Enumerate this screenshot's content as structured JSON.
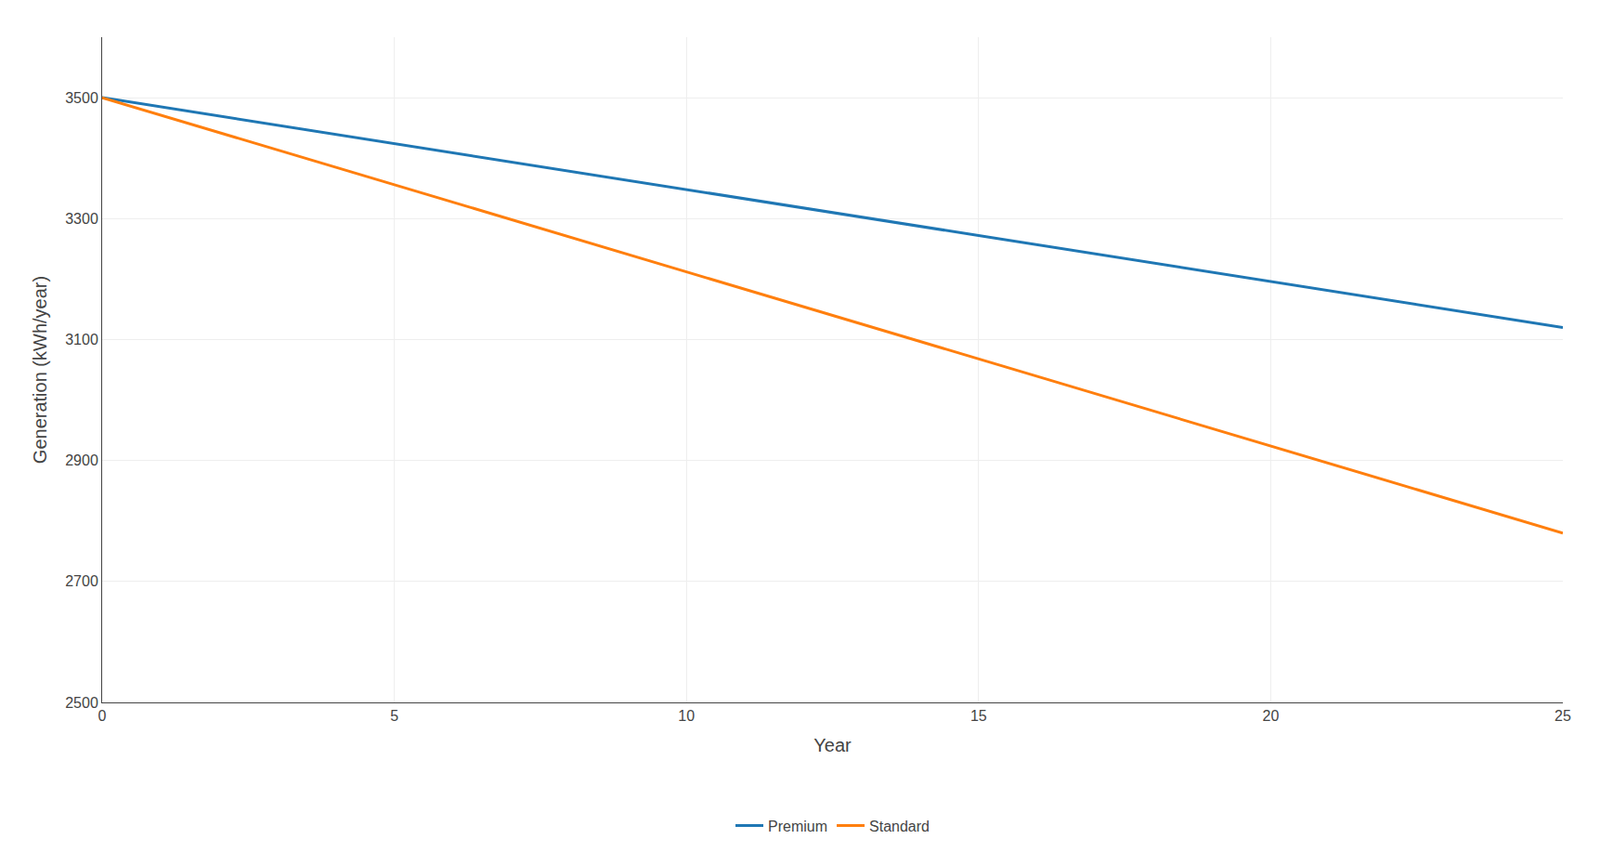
{
  "chart_data": {
    "type": "line",
    "xlabel": "Year",
    "ylabel": "Generation (kWh/year)",
    "x": [
      0,
      25
    ],
    "series": [
      {
        "name": "Premium",
        "values": [
          3500,
          3120
        ]
      },
      {
        "name": "Standard",
        "values": [
          3500,
          2780
        ]
      }
    ],
    "xlim": [
      0,
      25
    ],
    "ylim": [
      2500,
      3600
    ],
    "xticks": [
      0,
      5,
      10,
      15,
      20,
      25
    ],
    "yticks": [
      2500,
      2700,
      2900,
      3100,
      3300,
      3500
    ],
    "grid": true,
    "legend": "bottom"
  }
}
